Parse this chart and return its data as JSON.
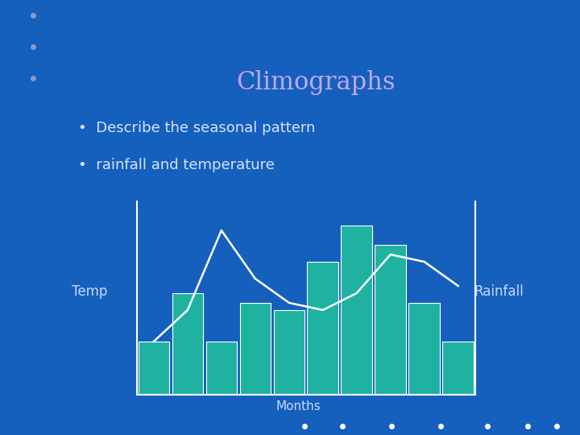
{
  "title": "Climographs",
  "bullets": [
    "Describe the seasonal pattern",
    "rainfall and temperature"
  ],
  "background_color": "#1560BD",
  "title_bar_color": "#4B0082",
  "title_text_color": "#C0A8F0",
  "bullet_text_color": "#D8E4FF",
  "label_text_color": "#C8D8FF",
  "bar_color": "#20B2A0",
  "bar_edge_color": "#FFFFFF",
  "line_color": "#FFFFFF",
  "axis_color": "#FFFFFF",
  "months_label": "Months",
  "temp_label": "Temp",
  "rainfall_label": "Rainfall",
  "bar_values": [
    2.2,
    4.2,
    2.2,
    3.8,
    3.5,
    5.5,
    7.0,
    6.2,
    3.8,
    2.2
  ],
  "temp_values": [
    2.2,
    3.5,
    6.8,
    4.8,
    3.8,
    3.5,
    4.2,
    5.8,
    5.5,
    4.5
  ],
  "num_bars": 10,
  "dots_color": "#FFFFFF",
  "bottom_bar_color": "#4B0082",
  "top_dots_color": "#8899CC"
}
